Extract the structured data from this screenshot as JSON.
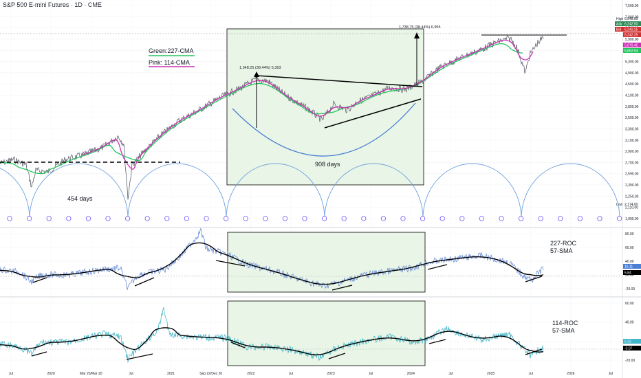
{
  "header": {
    "title": "S&P 500 E-mini Futures · 1D · CME"
  },
  "colors": {
    "price": "#5d606b",
    "green": "#22c55e",
    "pink": "#cc2fb4",
    "blue": "#4a7fd4",
    "box_fill": "#e8f4e5",
    "roc": "#6b8fd6",
    "roc114": "#3fb6c9",
    "sma": "#000000",
    "grid": "#eef0f3",
    "axis_text": "#131722",
    "ask": "#2e8b57",
    "bid": "#d32f2f"
  },
  "legend": {
    "green_label": "Green:227-CMA",
    "pink_label": "Pink: 114-CMA"
  },
  "annotations": {
    "measure1": "1,348.25 (38.44%) 5,393",
    "measure2": "1,738.75 (38.44%) 6,955",
    "days908": "908 days",
    "days454": "454 days",
    "roc227_label": [
      "227-ROC",
      "57-SMA"
    ],
    "roc114_label": [
      "114-ROC",
      "57-SMA"
    ]
  },
  "price_badges": {
    "high_label": "High",
    "high": "6,245.00",
    "ask_label": "Ask",
    "ask": "6,242.50",
    "bid_label": "Bid",
    "bid": "6,242.25",
    "last": "6,242.25",
    "green": "5,862.54",
    "pink": "5,879.45",
    "low_label": "Low",
    "low": "2,174.00"
  },
  "roc_badges": {
    "roc227": "16.11",
    "sma227": "5.84",
    "roc114": "6.32",
    "sma114": "-3.07"
  },
  "chart_data": [
    {
      "type": "line",
      "panel": "price",
      "y_ticks": [
        "7,500.00",
        "7,000.00",
        "6,500.00",
        "5,900.00",
        "5,500.00",
        "5,300.00",
        "4,900.00",
        "4,500.00",
        "4,100.00",
        "3,800.00",
        "3,500.00",
        "3,300.00",
        "3,100.00",
        "2,900.00",
        "2,700.00",
        "2,590.00",
        "2,390.00",
        "2,250.00",
        "2,110.00",
        "1,990.00"
      ],
      "x_ticks": [
        "Jul",
        "2020",
        "Mar 25/Mar 20",
        "Jul",
        "2021",
        "Sep 22/Dec 20",
        "2022",
        "Jul",
        "2023",
        "Jul",
        "2024",
        "Jul",
        "2025",
        "Jul",
        "2026",
        "Jul"
      ],
      "series": [
        {
          "name": "Green:227-CMA"
        },
        {
          "name": "Pink: 114-CMA"
        }
      ]
    },
    {
      "type": "line",
      "panel": "roc227",
      "y_ticks": [
        "80.00",
        "60.00",
        "40.00",
        "20.00",
        "-20.00"
      ]
    },
    {
      "type": "line",
      "panel": "roc114",
      "y_ticks": [
        "60.00",
        "40.00",
        "20.00",
        "-20.00"
      ]
    }
  ]
}
